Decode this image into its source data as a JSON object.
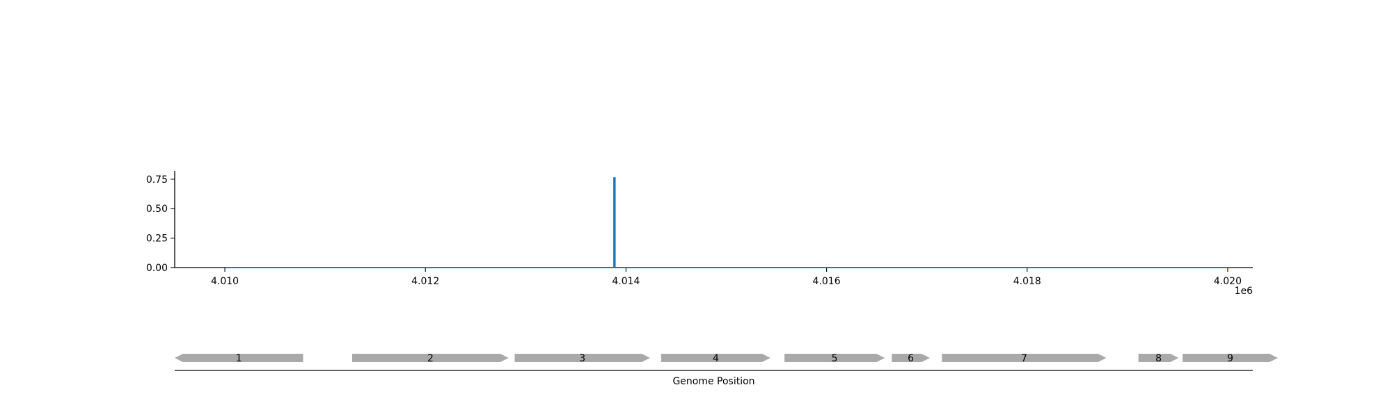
{
  "chart_data": [
    {
      "type": "line",
      "title": "",
      "xlabel": "",
      "ylabel": "",
      "x_offset_label": "1e6",
      "xlim": [
        4009500,
        4020250
      ],
      "ylim": [
        0,
        0.82
      ],
      "xticks": [
        4010000,
        4012000,
        4014000,
        4016000,
        4018000,
        4020000
      ],
      "xtick_labels": [
        "4.010",
        "4.012",
        "4.014",
        "4.016",
        "4.018",
        "4.020"
      ],
      "yticks": [
        0,
        0.25,
        0.5,
        0.75
      ],
      "ytick_labels": [
        "0.00",
        "0.25",
        "0.50",
        "0.75"
      ],
      "grid": false,
      "series": [
        {
          "color": "#1f77b4",
          "points": [
            [
              4010000,
              0
            ],
            [
              4013880,
              0
            ],
            [
              4013880,
              0.76
            ],
            [
              4013890,
              0.76
            ],
            [
              4013890,
              0
            ],
            [
              4020000,
              0
            ]
          ]
        }
      ]
    },
    {
      "type": "gene-track",
      "xlabel": "Genome Position",
      "xlim": [
        4009500,
        4020250
      ],
      "feature_color": "#a9a9a9",
      "genes": [
        {
          "label": "1",
          "start": 4009500,
          "end": 4010780,
          "strand": "-"
        },
        {
          "label": "2",
          "start": 4011270,
          "end": 4012830,
          "strand": "+"
        },
        {
          "label": "3",
          "start": 4012890,
          "end": 4014240,
          "strand": "+"
        },
        {
          "label": "4",
          "start": 4014350,
          "end": 4015440,
          "strand": "+"
        },
        {
          "label": "5",
          "start": 4015580,
          "end": 4016580,
          "strand": "+"
        },
        {
          "label": "6",
          "start": 4016650,
          "end": 4017030,
          "strand": "+"
        },
        {
          "label": "7",
          "start": 4017150,
          "end": 4018790,
          "strand": "+"
        },
        {
          "label": "8",
          "start": 4019110,
          "end": 4019510,
          "strand": "+"
        },
        {
          "label": "9",
          "start": 4019550,
          "end": 4020500,
          "strand": "+"
        }
      ]
    }
  ]
}
